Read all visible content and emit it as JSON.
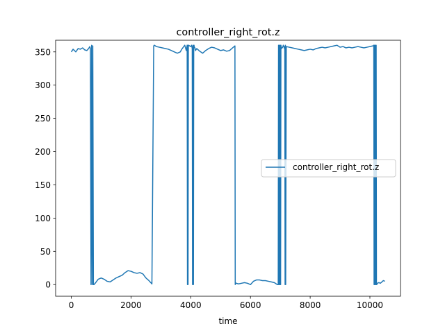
{
  "chart_data": {
    "type": "line",
    "title": "controller_right_rot.z",
    "xlabel": "time",
    "ylabel": "",
    "xlim": [
      -525,
      11025
    ],
    "ylim": [
      -17.5,
      367.5
    ],
    "xticks": [
      0,
      2000,
      4000,
      6000,
      8000,
      10000
    ],
    "yticks": [
      0,
      50,
      100,
      150,
      200,
      250,
      300,
      350
    ],
    "grid": false,
    "legend_position": "center-right",
    "series_color": "#1f77b4",
    "series": [
      {
        "name": "controller_right_rot.z",
        "x": [
          0,
          60,
          150,
          230,
          300,
          380,
          450,
          520,
          580,
          620,
          640,
          660,
          680,
          700,
          720,
          740,
          760,
          800,
          900,
          1000,
          1100,
          1200,
          1300,
          1400,
          1500,
          1600,
          1700,
          1800,
          1900,
          2000,
          2100,
          2200,
          2300,
          2400,
          2500,
          2600,
          2700,
          2760,
          2780,
          2850,
          2950,
          3050,
          3150,
          3250,
          3350,
          3450,
          3550,
          3650,
          3700,
          3750,
          3800,
          3850,
          3880,
          3890,
          3900,
          3910,
          3920,
          3930,
          3960,
          4000,
          4030,
          4050,
          4060,
          4070,
          4080,
          4090,
          4100,
          4110,
          4120,
          4140,
          4160,
          4200,
          4300,
          4400,
          4500,
          4600,
          4700,
          4800,
          4900,
          5000,
          5100,
          5200,
          5300,
          5400,
          5480,
          5490,
          5500,
          5520,
          5600,
          5700,
          5800,
          5900,
          6000,
          6100,
          6200,
          6300,
          6400,
          6500,
          6600,
          6700,
          6800,
          6900,
          6930,
          6940,
          6950,
          6960,
          6970,
          6980,
          6990,
          7000,
          7010,
          7020,
          7040,
          7060,
          7080,
          7100,
          7120,
          7140,
          7150,
          7160,
          7170,
          7180,
          7200,
          7300,
          7400,
          7500,
          7600,
          7700,
          7800,
          7900,
          8000,
          8100,
          8200,
          8300,
          8400,
          8500,
          8600,
          8700,
          8800,
          8900,
          9000,
          9100,
          9200,
          9300,
          9400,
          9500,
          9600,
          9700,
          9800,
          9900,
          10000,
          10100,
          10120,
          10130,
          10140,
          10150,
          10160,
          10170,
          10180,
          10190,
          10200,
          10210,
          10220,
          10230,
          10250,
          10300,
          10350,
          10400,
          10450,
          10500
        ],
        "y": [
          350,
          354,
          350,
          355,
          354,
          356,
          353,
          352,
          355,
          358,
          355,
          0,
          360,
          0,
          359,
          0,
          0,
          2,
          8,
          10,
          8,
          5,
          4,
          7,
          10,
          12,
          14,
          18,
          21,
          20,
          18,
          17,
          18,
          16,
          10,
          6,
          1,
          359,
          360,
          358,
          357,
          356,
          355,
          354,
          352,
          350,
          348,
          350,
          354,
          357,
          360,
          352,
          360,
          0,
          360,
          0,
          360,
          360,
          359,
          358,
          360,
          355,
          0,
          357,
          360,
          0,
          359,
          360,
          357,
          356,
          352,
          355,
          351,
          348,
          352,
          355,
          357,
          356,
          354,
          352,
          353,
          351,
          352,
          356,
          359,
          0,
          3,
          2,
          1,
          2,
          3,
          2,
          0,
          5,
          7,
          7,
          6,
          6,
          5,
          4,
          3,
          0,
          0,
          360,
          0,
          360,
          0,
          360,
          0,
          360,
          0,
          360,
          355,
          356,
          357,
          360,
          358,
          355,
          358,
          0,
          360,
          0,
          358,
          357,
          356,
          355,
          354,
          353,
          352,
          353,
          354,
          353,
          355,
          356,
          357,
          356,
          357,
          358,
          359,
          360,
          357,
          358,
          356,
          357,
          356,
          357,
          358,
          357,
          356,
          357,
          358,
          359,
          359,
          360,
          0,
          360,
          0,
          360,
          0,
          360,
          0,
          360,
          0,
          0,
          2,
          3,
          2,
          4,
          6,
          5
        ]
      }
    ]
  }
}
